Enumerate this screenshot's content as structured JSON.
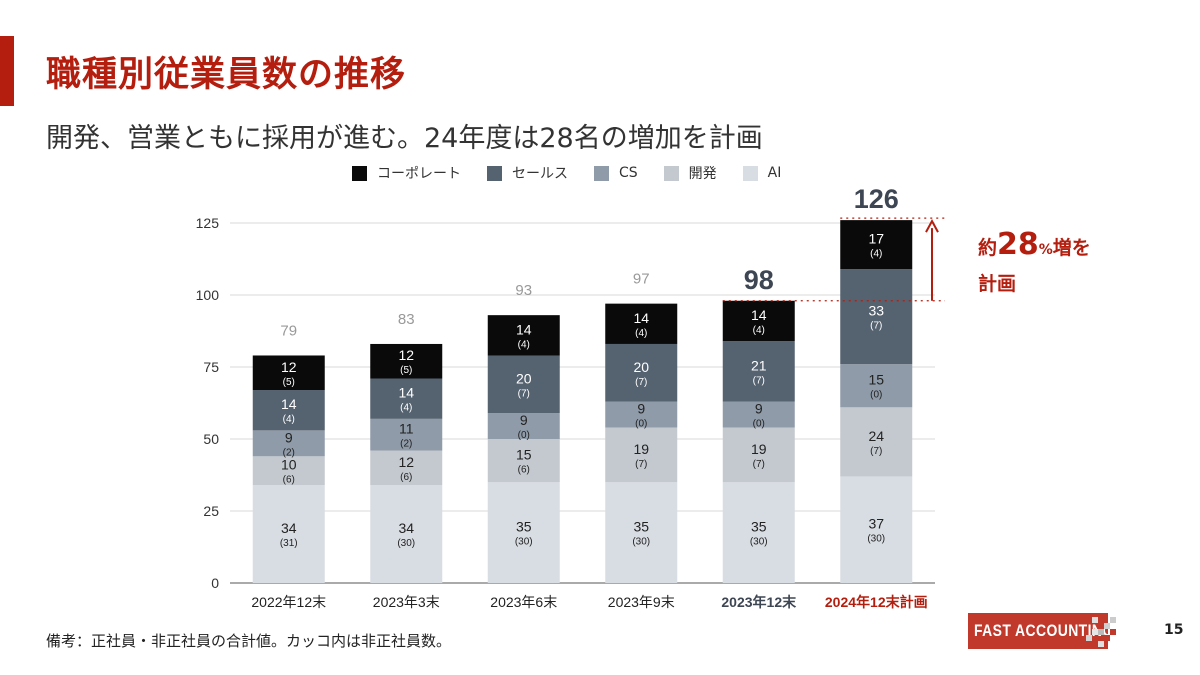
{
  "header": {
    "title": "職種別従業員数の推移",
    "subtitle": "開発、営業ともに採用が進む。24年度は28名の増加を計画"
  },
  "legend": [
    {
      "label": "コーポレート",
      "color": "#0a0a0a"
    },
    {
      "label": "セールス",
      "color": "#556270"
    },
    {
      "label": "CS",
      "color": "#8f9ba8"
    },
    {
      "label": "開発",
      "color": "#c3c9cf"
    },
    {
      "label": "AI",
      "color": "#d8dde3"
    }
  ],
  "annotation": {
    "prefix": "約",
    "number": "28",
    "percent": "%",
    "suffix": "増を",
    "line2": "計画",
    "color": "#b41e0f"
  },
  "footnote": "備考：正社員・非正社員の合計値。カッコ内は非正社員数。",
  "logo": {
    "text": "FAST ACCOUNTING"
  },
  "page_number": "15",
  "chart_data": {
    "type": "bar",
    "stacked": true,
    "categories": [
      "2022年12末",
      "2023年3末",
      "2023年6末",
      "2023年9末",
      "2023年12末",
      "2024年12末計画"
    ],
    "category_label_styles": [
      "normal",
      "normal",
      "normal",
      "normal",
      "bold-dark",
      "bold-accent"
    ],
    "ylim": [
      0,
      125
    ],
    "yticks": [
      0,
      25,
      50,
      75,
      100,
      125
    ],
    "grid": true,
    "legend_position": "top",
    "series": [
      {
        "name": "AI",
        "color": "#d8dde3",
        "text_color": "#222222",
        "values": [
          34,
          34,
          35,
          35,
          35,
          37
        ],
        "non_regular": [
          31,
          30,
          30,
          30,
          30,
          30
        ]
      },
      {
        "name": "開発",
        "color": "#c3c9cf",
        "text_color": "#222222",
        "values": [
          10,
          12,
          15,
          19,
          19,
          24
        ],
        "non_regular": [
          6,
          6,
          6,
          7,
          7,
          7
        ]
      },
      {
        "name": "CS",
        "color": "#8f9ba8",
        "text_color": "#222222",
        "values": [
          9,
          11,
          9,
          9,
          9,
          15
        ],
        "non_regular": [
          2,
          2,
          0,
          0,
          0,
          0
        ]
      },
      {
        "name": "セールス",
        "color": "#556270",
        "text_color": "#ffffff",
        "values": [
          14,
          14,
          20,
          20,
          21,
          33
        ],
        "non_regular": [
          4,
          4,
          7,
          7,
          7,
          7
        ]
      },
      {
        "name": "コーポレート",
        "color": "#0a0a0a",
        "text_color": "#ffffff",
        "values": [
          12,
          12,
          14,
          14,
          14,
          17
        ],
        "non_regular": [
          5,
          5,
          4,
          4,
          4,
          4
        ]
      }
    ],
    "totals": [
      79,
      83,
      93,
      97,
      98,
      126
    ],
    "total_label_styles": [
      "light",
      "light",
      "light",
      "light",
      "bold-dark",
      "bold-dark"
    ],
    "accent_color": "#b41e0f"
  }
}
